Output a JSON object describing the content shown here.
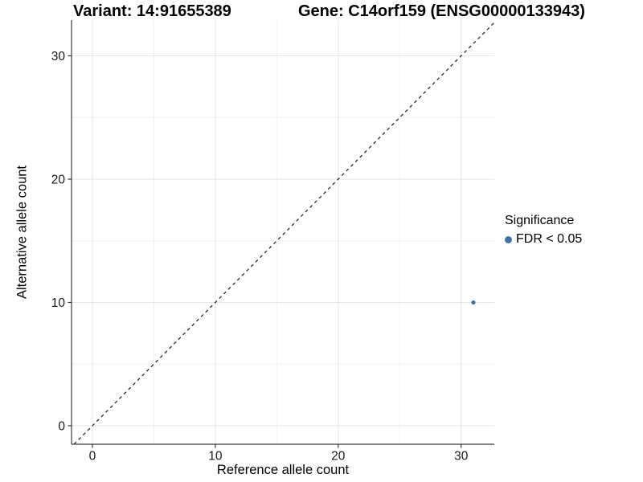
{
  "chart_data": {
    "type": "scatter",
    "title_left": "Variant: 14:91655389",
    "title_right": "Gene: C14orf159 (ENSG00000133943)",
    "xlabel": "Reference allele count",
    "ylabel": "Alternative allele count",
    "xlim": [
      -1.7,
      32.7
    ],
    "ylim": [
      -1.5,
      32.9
    ],
    "xticks": [
      0,
      10,
      20,
      30
    ],
    "yticks": [
      0,
      10,
      20,
      30
    ],
    "xticks_minor": [
      5,
      15,
      25
    ],
    "yticks_minor": [
      5,
      15,
      25
    ],
    "grid": {
      "on": true,
      "major_color": "#e5e5e5",
      "minor_color": "#f2f2f2"
    },
    "abline": {
      "slope": 1,
      "intercept": 0,
      "style": "dashed",
      "color": "#1a1a1a"
    },
    "series": [
      {
        "name": "FDR < 0.05",
        "color": "#4272a5",
        "points": [
          {
            "x": 31,
            "y": 10
          }
        ]
      }
    ],
    "legend": {
      "title": "Significance",
      "position": "right",
      "items": [
        {
          "label": "FDR < 0.05",
          "color": "#4272a5"
        }
      ]
    }
  }
}
